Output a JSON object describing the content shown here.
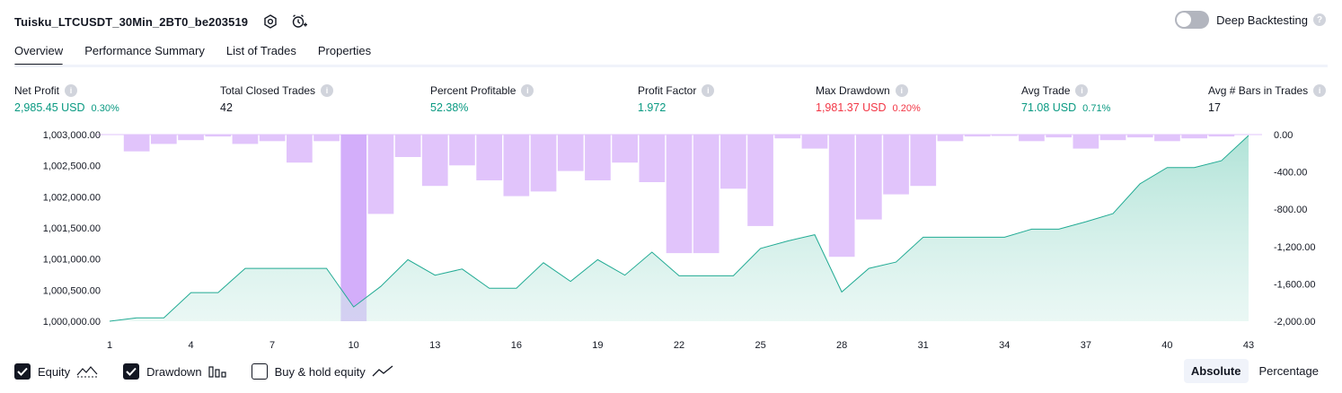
{
  "header": {
    "title": "Tuisku_LTCUSDT_30Min_2BT0_be203519",
    "deep_backtesting_label": "Deep Backtesting",
    "deep_backtesting_on": false
  },
  "tabs": [
    {
      "label": "Overview",
      "active": true
    },
    {
      "label": "Performance Summary",
      "active": false
    },
    {
      "label": "List of Trades",
      "active": false
    },
    {
      "label": "Properties",
      "active": false
    }
  ],
  "stats": {
    "net_profit": {
      "label": "Net Profit",
      "value": "2,985.45 USD",
      "pct": "0.30%"
    },
    "total_closed_trades": {
      "label": "Total Closed Trades",
      "value": "42"
    },
    "percent_profitable": {
      "label": "Percent Profitable",
      "value": "52.38%"
    },
    "profit_factor": {
      "label": "Profit Factor",
      "value": "1.972"
    },
    "max_drawdown": {
      "label": "Max Drawdown",
      "value": "1,981.37 USD",
      "pct": "0.20%"
    },
    "avg_trade": {
      "label": "Avg Trade",
      "value": "71.08 USD",
      "pct": "0.71%"
    },
    "avg_bars": {
      "label": "Avg # Bars in Trades",
      "value": "17"
    }
  },
  "chart_data": {
    "type": "area",
    "x_ticks": [
      "1",
      "4",
      "7",
      "10",
      "13",
      "16",
      "19",
      "22",
      "25",
      "28",
      "31",
      "34",
      "37",
      "40",
      "43"
    ],
    "y_left_ticks": [
      "1,003,000.00",
      "1,002,500.00",
      "1,002,000.00",
      "1,001,500.00",
      "1,001,000.00",
      "1,000,500.00",
      "1,000,000.00"
    ],
    "y_right_ticks": [
      "0.00",
      "-400.00",
      "-800.00",
      "-1,200.00",
      "-1,600.00",
      "-2,000.00"
    ],
    "y_left_range": [
      1000000,
      1003000
    ],
    "y_right_range": [
      -2000,
      0
    ],
    "x_range": [
      1,
      43
    ],
    "equity_color": "#22ab94",
    "equity_fill": "#d5f0ea",
    "drawdown_color": "#e1c4fb",
    "drawdown_highlight_color": "#d3aefa",
    "highlight_trade": 10,
    "equity": [
      1000000,
      1000055,
      1000055,
      1000460,
      1000460,
      1000850,
      1000850,
      1000850,
      1000850,
      1000230,
      1000560,
      1000990,
      1000740,
      1000840,
      1000530,
      1000530,
      1000940,
      1000640,
      1000990,
      1000740,
      1001110,
      1000730,
      1000730,
      1000730,
      1001170,
      1001290,
      1001390,
      1000470,
      1000850,
      1000950,
      1001350,
      1001350,
      1001350,
      1001350,
      1001480,
      1001480,
      1001600,
      1001730,
      1002210,
      1002470,
      1002470,
      1002580,
      1002985
    ],
    "drawdown": [
      0,
      -180,
      -100,
      -60,
      -20,
      -100,
      -70,
      -300,
      -70,
      -2000,
      -850,
      -240,
      -550,
      -330,
      -490,
      -660,
      -610,
      -390,
      -490,
      -300,
      -510,
      -1270,
      -1270,
      -580,
      -980,
      -40,
      -150,
      -1310,
      -910,
      -640,
      -550,
      -70,
      -20,
      -10,
      -70,
      -30,
      -150,
      -60,
      -30,
      -70,
      -40,
      -20,
      0
    ]
  },
  "legend": {
    "equity_label": "Equity",
    "equity_checked": true,
    "drawdown_label": "Drawdown",
    "drawdown_checked": true,
    "buyhold_label": "Buy & hold equity",
    "buyhold_checked": false
  },
  "modes": {
    "absolute_label": "Absolute",
    "percentage_label": "Percentage",
    "active": "absolute"
  },
  "icons": {
    "settings": "gear-icon",
    "add_alert": "alarm-plus-icon",
    "info": "info-icon",
    "help": "help-icon",
    "checkmark": "check-icon"
  }
}
